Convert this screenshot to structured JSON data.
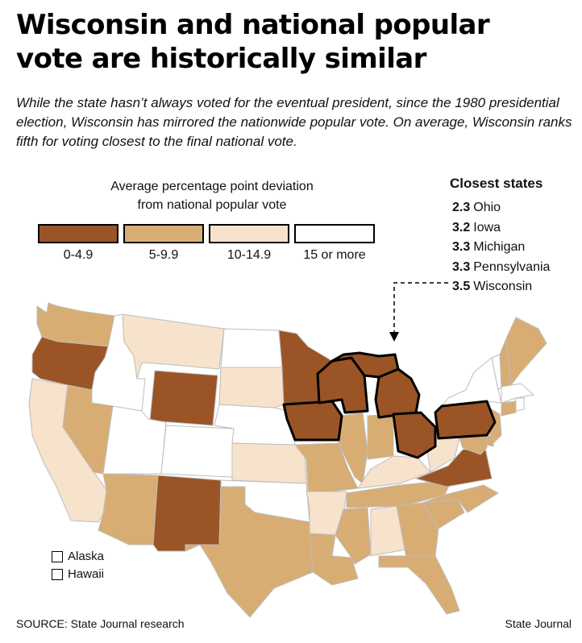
{
  "headline": {
    "line1": "Wisconsin and national popular",
    "line2": "vote are historically similar"
  },
  "intro": "While the state hasn’t always voted for the eventual president, since the 1980 presidential election, Wisconsin has mirrored the nationwide popular vote. On average, Wisconsin ranks fifth for voting closest to the final national vote.",
  "legend": {
    "title_line1": "Average percentage point deviation",
    "title_line2": "from national popular vote",
    "items": [
      {
        "label": "0-4.9",
        "color": "#9a5426"
      },
      {
        "label": "5-9.9",
        "color": "#d8ad74"
      },
      {
        "label": "10-14.9",
        "color": "#f7e2cc"
      },
      {
        "label": "15 or more",
        "color": "#ffffff"
      }
    ]
  },
  "closest": {
    "title": "Closest states",
    "rows": [
      {
        "value": "2.3",
        "state": "Ohio"
      },
      {
        "value": "3.2",
        "state": "Iowa"
      },
      {
        "value": "3.3",
        "state": "Michigan"
      },
      {
        "value": "3.3",
        "state": "Pennsylvania"
      },
      {
        "value": "3.5",
        "state": "Wisconsin"
      }
    ]
  },
  "small_states": [
    "Alaska",
    "Hawaii"
  ],
  "map_categories": {
    "WA": 2,
    "OR": 1,
    "CA": 3,
    "ID": 4,
    "NV": 2,
    "MT": 3,
    "WY": 1,
    "UT": 4,
    "AZ": 2,
    "CO": 4,
    "NM": 1,
    "ND": 4,
    "SD": 3,
    "NE": 4,
    "KS": 3,
    "OK": 4,
    "TX": 2,
    "MN": 1,
    "IA": 1,
    "MO": 2,
    "AR": 3,
    "LA": 2,
    "WI": 1,
    "IL": 2,
    "MI": 1,
    "IN": 2,
    "OH": 1,
    "KY": 3,
    "TN": 2,
    "MS": 2,
    "AL": 3,
    "GA": 2,
    "FL": 2,
    "SC": 2,
    "NC": 2,
    "VA": 1,
    "WV": 3,
    "PA": 1,
    "NY": 4,
    "VT": 4,
    "NH": 2,
    "ME": 2,
    "MA": 4,
    "CT": 2,
    "RI": 4,
    "NJ": 2,
    "DE": 2,
    "MD": 2
  },
  "highlighted": [
    "OH",
    "IA",
    "MI",
    "PA",
    "WI"
  ],
  "source": "SOURCE: State Journal research",
  "credit": "State Journal"
}
